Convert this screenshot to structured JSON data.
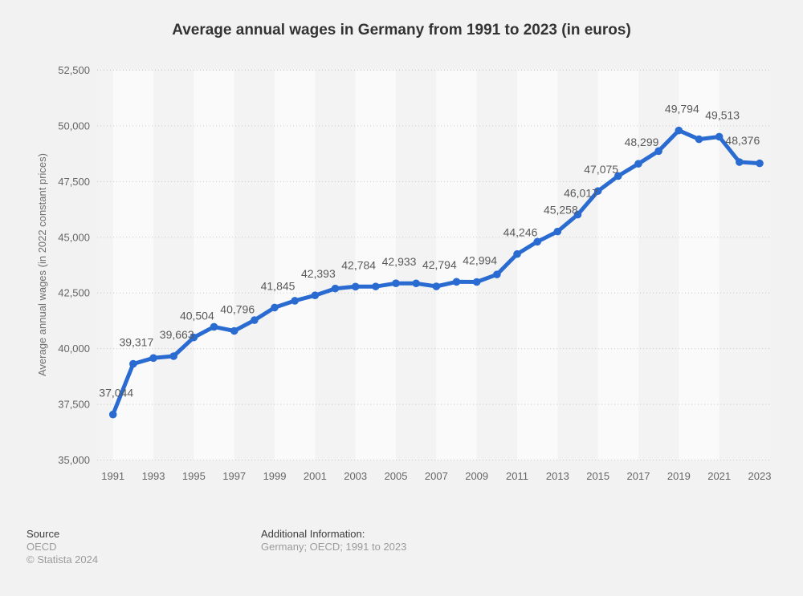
{
  "page": {
    "title": "Average annual wages in Germany from 1991 to 2023 (in euros)"
  },
  "chart_data": {
    "type": "line",
    "title": "Average annual wages in Germany from 1991 to 2023 (in euros)",
    "xlabel": "",
    "ylabel": "Average annual wages (in 2022 constant prices)",
    "ylim": [
      35000,
      52500
    ],
    "yticks": [
      {
        "value": 35000,
        "label": "35,000"
      },
      {
        "value": 37500,
        "label": "37,500"
      },
      {
        "value": 40000,
        "label": "40,000"
      },
      {
        "value": 42500,
        "label": "42,500"
      },
      {
        "value": 45000,
        "label": "45,000"
      },
      {
        "value": 47500,
        "label": "47,500"
      },
      {
        "value": 50000,
        "label": "50,000"
      },
      {
        "value": 52500,
        "label": "52,500"
      }
    ],
    "xticks": [
      "1991",
      "1993",
      "1995",
      "1997",
      "1999",
      "2001",
      "2003",
      "2005",
      "2007",
      "2009",
      "2011",
      "2013",
      "2015",
      "2017",
      "2019",
      "2021",
      "2023"
    ],
    "x": [
      1991,
      1992,
      1993,
      1994,
      1995,
      1996,
      1997,
      1998,
      1999,
      2000,
      2001,
      2002,
      2003,
      2004,
      2005,
      2006,
      2007,
      2008,
      2009,
      2010,
      2011,
      2012,
      2013,
      2014,
      2015,
      2016,
      2017,
      2018,
      2019,
      2020,
      2021,
      2022,
      2023
    ],
    "values": [
      37044,
      39317,
      39580,
      39663,
      40504,
      40980,
      40796,
      41280,
      41845,
      42150,
      42393,
      42700,
      42784,
      42790,
      42933,
      42930,
      42794,
      43000,
      42994,
      43330,
      44246,
      44800,
      45258,
      46017,
      47075,
      47750,
      48299,
      48870,
      49794,
      49400,
      49513,
      48376,
      48320
    ],
    "data_labels": [
      {
        "year": 1991,
        "label": "37,044"
      },
      {
        "year": 1992,
        "label": "39,317"
      },
      {
        "year": 1994,
        "label": "39,663"
      },
      {
        "year": 1995,
        "label": "40,504"
      },
      {
        "year": 1997,
        "label": "40,796"
      },
      {
        "year": 1999,
        "label": "41,845"
      },
      {
        "year": 2001,
        "label": "42,393"
      },
      {
        "year": 2003,
        "label": "42,784"
      },
      {
        "year": 2005,
        "label": "42,933"
      },
      {
        "year": 2007,
        "label": "42,794"
      },
      {
        "year": 2009,
        "label": "42,994"
      },
      {
        "year": 2011,
        "label": "44,246"
      },
      {
        "year": 2013,
        "label": "45,258"
      },
      {
        "year": 2014,
        "label": "46,017"
      },
      {
        "year": 2015,
        "label": "47,075"
      },
      {
        "year": 2017,
        "label": "48,299"
      },
      {
        "year": 2019,
        "label": "49,794"
      },
      {
        "year": 2021,
        "label": "49,513"
      },
      {
        "year": 2022,
        "label": "48,376"
      }
    ],
    "grid": "horizontal-dotted",
    "legend": "none",
    "colors": {
      "line": "#2a6bd2",
      "grid": "#c9c9c9",
      "band_light": "#fafafa",
      "band_dark": "#f3f3f3",
      "background": "#f2f2f2"
    }
  },
  "footer": {
    "source_label": "Source",
    "source_value": "OECD",
    "copyright": "© Statista 2024",
    "additional_info_label": "Additional Information:",
    "additional_info_value": "Germany; OECD; 1991 to 2023"
  }
}
